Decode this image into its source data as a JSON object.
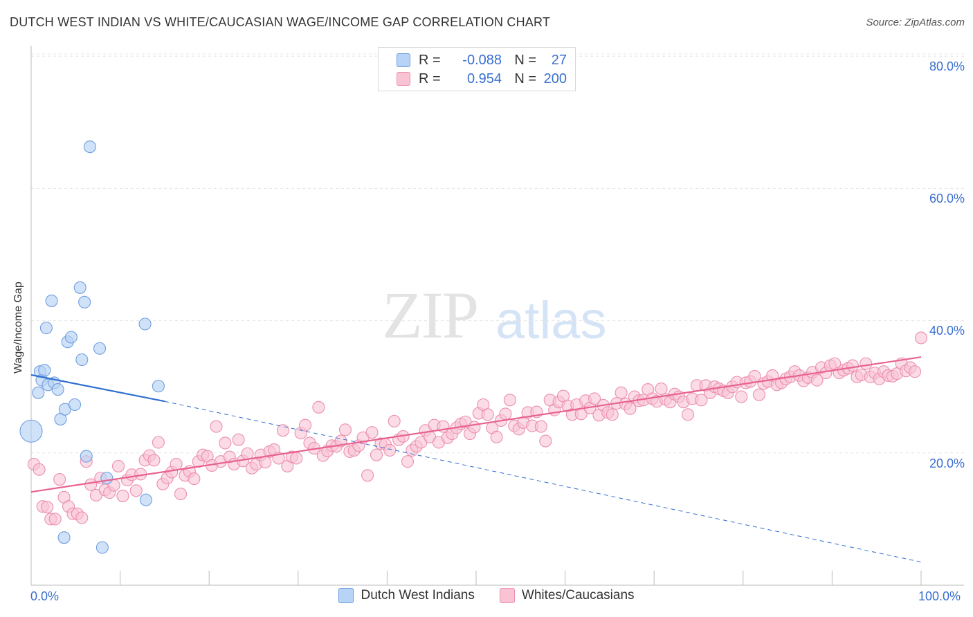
{
  "title": "DUTCH WEST INDIAN VS WHITE/CAUCASIAN WAGE/INCOME GAP CORRELATION CHART",
  "source": "Source: ZipAtlas.com",
  "watermark": {
    "zip": "ZIP",
    "atlas": "atlas"
  },
  "legend": {
    "rows": [
      {
        "r_label": "R =",
        "r_value": "-0.088",
        "n_label": "N =",
        "n_value": "27"
      },
      {
        "r_label": "R =",
        "r_value": "0.954",
        "n_label": "N =",
        "n_value": "200"
      }
    ]
  },
  "bottom_legend": [
    "Dutch West Indians",
    "Whites/Caucasians"
  ],
  "axes": {
    "ylabel": "Wage/Income Gap",
    "x_min_label": "0.0%",
    "x_max_label": "100.0%",
    "y_tick_labels": [
      "80.0%",
      "60.0%",
      "40.0%",
      "20.0%"
    ]
  },
  "colors": {
    "blue_fill": "#b7d3f5",
    "blue_stroke": "#6f9ee0",
    "blue_line": "#2f6fd0",
    "pink_fill": "#f9c3d4",
    "pink_stroke": "#ec8fae",
    "pink_line": "#e8628f",
    "grid": "#e4e4e4",
    "axis_text": "#3a6fd0"
  },
  "chart_data": {
    "type": "scatter",
    "xlim": [
      0,
      100
    ],
    "ylim": [
      0,
      85
    ],
    "y_ticks": [
      20,
      40,
      60,
      80
    ],
    "grid": true,
    "series": [
      {
        "name": "Dutch West Indians",
        "points": [
          [
            0.0,
            23.3
          ],
          [
            0.8,
            29.1
          ],
          [
            1.0,
            32.3
          ],
          [
            1.2,
            31.0
          ],
          [
            1.5,
            32.5
          ],
          [
            1.7,
            38.9
          ],
          [
            1.9,
            30.3
          ],
          [
            2.3,
            43.0
          ],
          [
            2.6,
            30.6
          ],
          [
            3.0,
            29.6
          ],
          [
            3.3,
            25.1
          ],
          [
            3.7,
            7.2
          ],
          [
            3.8,
            26.6
          ],
          [
            4.1,
            36.8
          ],
          [
            4.5,
            37.5
          ],
          [
            4.9,
            27.3
          ],
          [
            5.5,
            45.0
          ],
          [
            5.7,
            34.1
          ],
          [
            6.0,
            42.8
          ],
          [
            6.2,
            19.5
          ],
          [
            6.6,
            66.3
          ],
          [
            7.7,
            35.8
          ],
          [
            8.0,
            5.7
          ],
          [
            8.5,
            16.2
          ],
          [
            12.8,
            39.5
          ],
          [
            12.9,
            12.9
          ],
          [
            14.3,
            30.1
          ]
        ],
        "trend": {
          "x": [
            0,
            15
          ],
          "y": [
            31.8,
            27.8
          ]
        },
        "trend_extended": {
          "x": [
            15,
            100
          ],
          "y": [
            27.8,
            3.5
          ]
        }
      },
      {
        "name": "Whites/Caucasians",
        "points": [
          [
            0.3,
            18.3
          ],
          [
            0.9,
            17.5
          ],
          [
            1.3,
            11.9
          ],
          [
            1.8,
            11.8
          ],
          [
            2.2,
            10.0
          ],
          [
            2.7,
            10.0
          ],
          [
            3.2,
            16.0
          ],
          [
            3.7,
            13.3
          ],
          [
            4.2,
            11.9
          ],
          [
            4.7,
            10.8
          ],
          [
            5.2,
            10.8
          ],
          [
            5.7,
            10.2
          ],
          [
            6.2,
            18.7
          ],
          [
            6.7,
            15.2
          ],
          [
            7.3,
            13.6
          ],
          [
            7.8,
            16.2
          ],
          [
            8.3,
            14.4
          ],
          [
            8.8,
            14.0
          ],
          [
            9.3,
            15.1
          ],
          [
            9.8,
            18.0
          ],
          [
            10.3,
            13.5
          ],
          [
            10.8,
            15.9
          ],
          [
            11.3,
            16.7
          ],
          [
            11.8,
            14.3
          ],
          [
            12.3,
            16.8
          ],
          [
            12.8,
            18.9
          ],
          [
            13.3,
            19.6
          ],
          [
            13.8,
            18.9
          ],
          [
            14.3,
            21.6
          ],
          [
            14.8,
            15.3
          ],
          [
            15.3,
            16.2
          ],
          [
            15.8,
            17.1
          ],
          [
            16.3,
            18.3
          ],
          [
            16.8,
            13.8
          ],
          [
            17.3,
            16.6
          ],
          [
            17.8,
            17.2
          ],
          [
            18.3,
            16.1
          ],
          [
            18.8,
            18.7
          ],
          [
            19.3,
            19.7
          ],
          [
            19.8,
            19.5
          ],
          [
            20.3,
            18.1
          ],
          [
            20.8,
            24.0
          ],
          [
            21.3,
            18.7
          ],
          [
            21.8,
            21.5
          ],
          [
            22.3,
            19.4
          ],
          [
            22.8,
            18.3
          ],
          [
            23.3,
            22.0
          ],
          [
            23.8,
            18.8
          ],
          [
            24.3,
            19.9
          ],
          [
            24.8,
            17.7
          ],
          [
            25.3,
            18.3
          ],
          [
            25.8,
            19.7
          ],
          [
            26.3,
            18.6
          ],
          [
            26.8,
            20.2
          ],
          [
            27.3,
            20.5
          ],
          [
            27.8,
            19.2
          ],
          [
            28.3,
            23.4
          ],
          [
            28.8,
            18.0
          ],
          [
            29.3,
            19.4
          ],
          [
            29.8,
            19.2
          ],
          [
            30.3,
            23.0
          ],
          [
            30.8,
            24.2
          ],
          [
            31.3,
            21.5
          ],
          [
            31.8,
            20.7
          ],
          [
            32.3,
            26.9
          ],
          [
            32.8,
            19.6
          ],
          [
            33.3,
            20.3
          ],
          [
            33.8,
            21.1
          ],
          [
            34.3,
            21.0
          ],
          [
            34.8,
            21.8
          ],
          [
            35.3,
            23.5
          ],
          [
            35.8,
            20.2
          ],
          [
            36.3,
            20.4
          ],
          [
            36.8,
            21.1
          ],
          [
            37.3,
            22.3
          ],
          [
            37.8,
            16.6
          ],
          [
            38.3,
            23.1
          ],
          [
            38.8,
            19.7
          ],
          [
            39.3,
            21.4
          ],
          [
            39.8,
            21.3
          ],
          [
            40.3,
            20.4
          ],
          [
            40.8,
            24.8
          ],
          [
            41.3,
            22.0
          ],
          [
            41.8,
            22.5
          ],
          [
            42.3,
            18.7
          ],
          [
            42.8,
            20.4
          ],
          [
            43.3,
            21.0
          ],
          [
            43.8,
            21.6
          ],
          [
            44.3,
            23.4
          ],
          [
            44.8,
            22.4
          ],
          [
            45.3,
            24.2
          ],
          [
            45.8,
            21.6
          ],
          [
            46.3,
            24.0
          ],
          [
            46.8,
            22.3
          ],
          [
            47.3,
            22.9
          ],
          [
            47.8,
            23.8
          ],
          [
            48.3,
            24.4
          ],
          [
            48.8,
            24.7
          ],
          [
            49.3,
            22.9
          ],
          [
            49.8,
            23.9
          ],
          [
            50.3,
            26.0
          ],
          [
            50.8,
            27.3
          ],
          [
            51.3,
            25.8
          ],
          [
            51.8,
            23.8
          ],
          [
            52.3,
            22.4
          ],
          [
            52.8,
            24.9
          ],
          [
            53.3,
            25.9
          ],
          [
            53.8,
            28.0
          ],
          [
            54.3,
            24.1
          ],
          [
            54.8,
            23.6
          ],
          [
            55.3,
            24.6
          ],
          [
            55.8,
            26.1
          ],
          [
            56.3,
            24.1
          ],
          [
            56.8,
            26.2
          ],
          [
            57.3,
            24.0
          ],
          [
            57.8,
            21.8
          ],
          [
            58.3,
            28.0
          ],
          [
            58.8,
            26.5
          ],
          [
            59.3,
            27.7
          ],
          [
            59.8,
            28.6
          ],
          [
            60.3,
            27.1
          ],
          [
            60.8,
            25.8
          ],
          [
            61.3,
            27.3
          ],
          [
            61.8,
            25.9
          ],
          [
            62.3,
            27.9
          ],
          [
            62.8,
            26.8
          ],
          [
            63.3,
            28.2
          ],
          [
            63.8,
            25.7
          ],
          [
            64.3,
            27.2
          ],
          [
            64.8,
            26.1
          ],
          [
            65.3,
            25.8
          ],
          [
            65.8,
            27.5
          ],
          [
            66.3,
            29.1
          ],
          [
            66.8,
            27.4
          ],
          [
            67.3,
            26.7
          ],
          [
            67.8,
            28.5
          ],
          [
            68.3,
            27.9
          ],
          [
            68.8,
            28.0
          ],
          [
            69.3,
            29.6
          ],
          [
            69.8,
            28.2
          ],
          [
            70.3,
            27.8
          ],
          [
            70.8,
            29.7
          ],
          [
            71.3,
            28.1
          ],
          [
            71.8,
            27.7
          ],
          [
            72.3,
            28.9
          ],
          [
            72.8,
            28.5
          ],
          [
            73.3,
            27.7
          ],
          [
            73.8,
            25.8
          ],
          [
            74.3,
            28.2
          ],
          [
            74.8,
            30.2
          ],
          [
            75.3,
            28.0
          ],
          [
            75.8,
            30.2
          ],
          [
            76.3,
            29.1
          ],
          [
            76.8,
            30.0
          ],
          [
            77.3,
            29.7
          ],
          [
            77.8,
            29.4
          ],
          [
            78.3,
            29.1
          ],
          [
            78.8,
            30.0
          ],
          [
            79.3,
            30.7
          ],
          [
            79.8,
            28.5
          ],
          [
            80.3,
            30.6
          ],
          [
            80.8,
            30.8
          ],
          [
            81.3,
            31.6
          ],
          [
            81.8,
            28.8
          ],
          [
            82.3,
            30.5
          ],
          [
            82.8,
            30.8
          ],
          [
            83.3,
            31.7
          ],
          [
            83.8,
            30.3
          ],
          [
            84.3,
            30.6
          ],
          [
            84.8,
            31.2
          ],
          [
            85.3,
            31.5
          ],
          [
            85.8,
            32.3
          ],
          [
            86.3,
            31.7
          ],
          [
            86.8,
            30.9
          ],
          [
            87.3,
            31.4
          ],
          [
            87.8,
            32.2
          ],
          [
            88.3,
            31.0
          ],
          [
            88.8,
            32.9
          ],
          [
            89.3,
            32.1
          ],
          [
            89.8,
            33.2
          ],
          [
            90.3,
            33.5
          ],
          [
            90.8,
            32.1
          ],
          [
            91.3,
            32.5
          ],
          [
            91.8,
            32.8
          ],
          [
            92.3,
            33.2
          ],
          [
            92.8,
            31.5
          ],
          [
            93.3,
            31.8
          ],
          [
            93.8,
            33.5
          ],
          [
            94.3,
            31.5
          ],
          [
            94.8,
            32.1
          ],
          [
            95.3,
            31.2
          ],
          [
            95.8,
            32.3
          ],
          [
            96.3,
            31.7
          ],
          [
            96.8,
            31.6
          ],
          [
            97.3,
            32.0
          ],
          [
            97.8,
            33.5
          ],
          [
            98.3,
            32.4
          ],
          [
            98.8,
            32.9
          ],
          [
            99.3,
            32.3
          ],
          [
            100.0,
            37.4
          ]
        ],
        "trend": {
          "x": [
            0,
            100
          ],
          "y": [
            14.1,
            34.5
          ]
        }
      }
    ]
  }
}
